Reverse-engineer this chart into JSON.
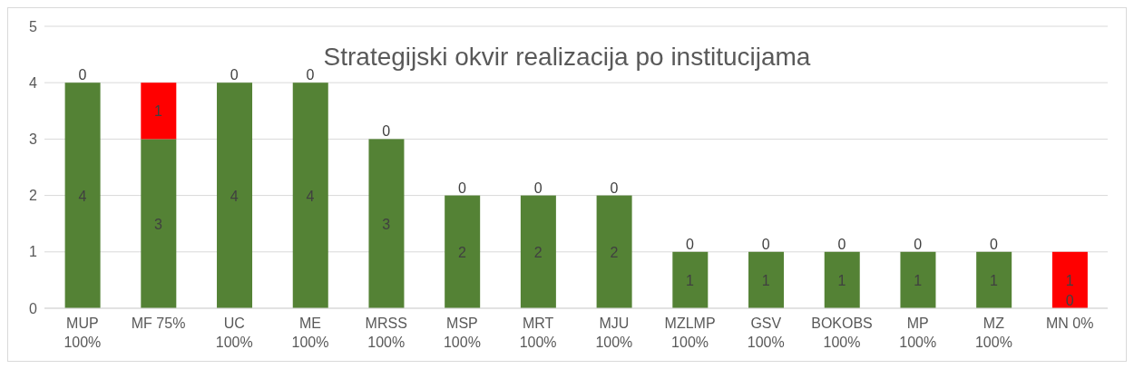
{
  "chart_data": {
    "type": "bar",
    "title": "Strategijski okvir realizacija po institucijama",
    "categories": [
      "MUP 100%",
      "MF 75%",
      "UC 100%",
      "ME 100%",
      "MRSS 100%",
      "MSP 100%",
      "MRT 100%",
      "MJU 100%",
      "MZLMP 100%",
      "GSV 100%",
      "BOKOBS 100%",
      "MP 100%",
      "MZ 100%",
      "MN 0%"
    ],
    "series": [
      {
        "color": "#548235",
        "values": [
          4,
          3,
          4,
          4,
          3,
          2,
          2,
          2,
          1,
          1,
          1,
          1,
          1,
          0
        ]
      },
      {
        "color": "#ff0000",
        "values": [
          0,
          1,
          0,
          0,
          0,
          0,
          0,
          0,
          0,
          0,
          0,
          0,
          0,
          1
        ]
      }
    ],
    "stacked": true,
    "data_labels": true,
    "ylim": [
      0,
      5
    ],
    "yticks": [
      0,
      1,
      2,
      3,
      4,
      5
    ],
    "grid": "y",
    "legend": false
  }
}
